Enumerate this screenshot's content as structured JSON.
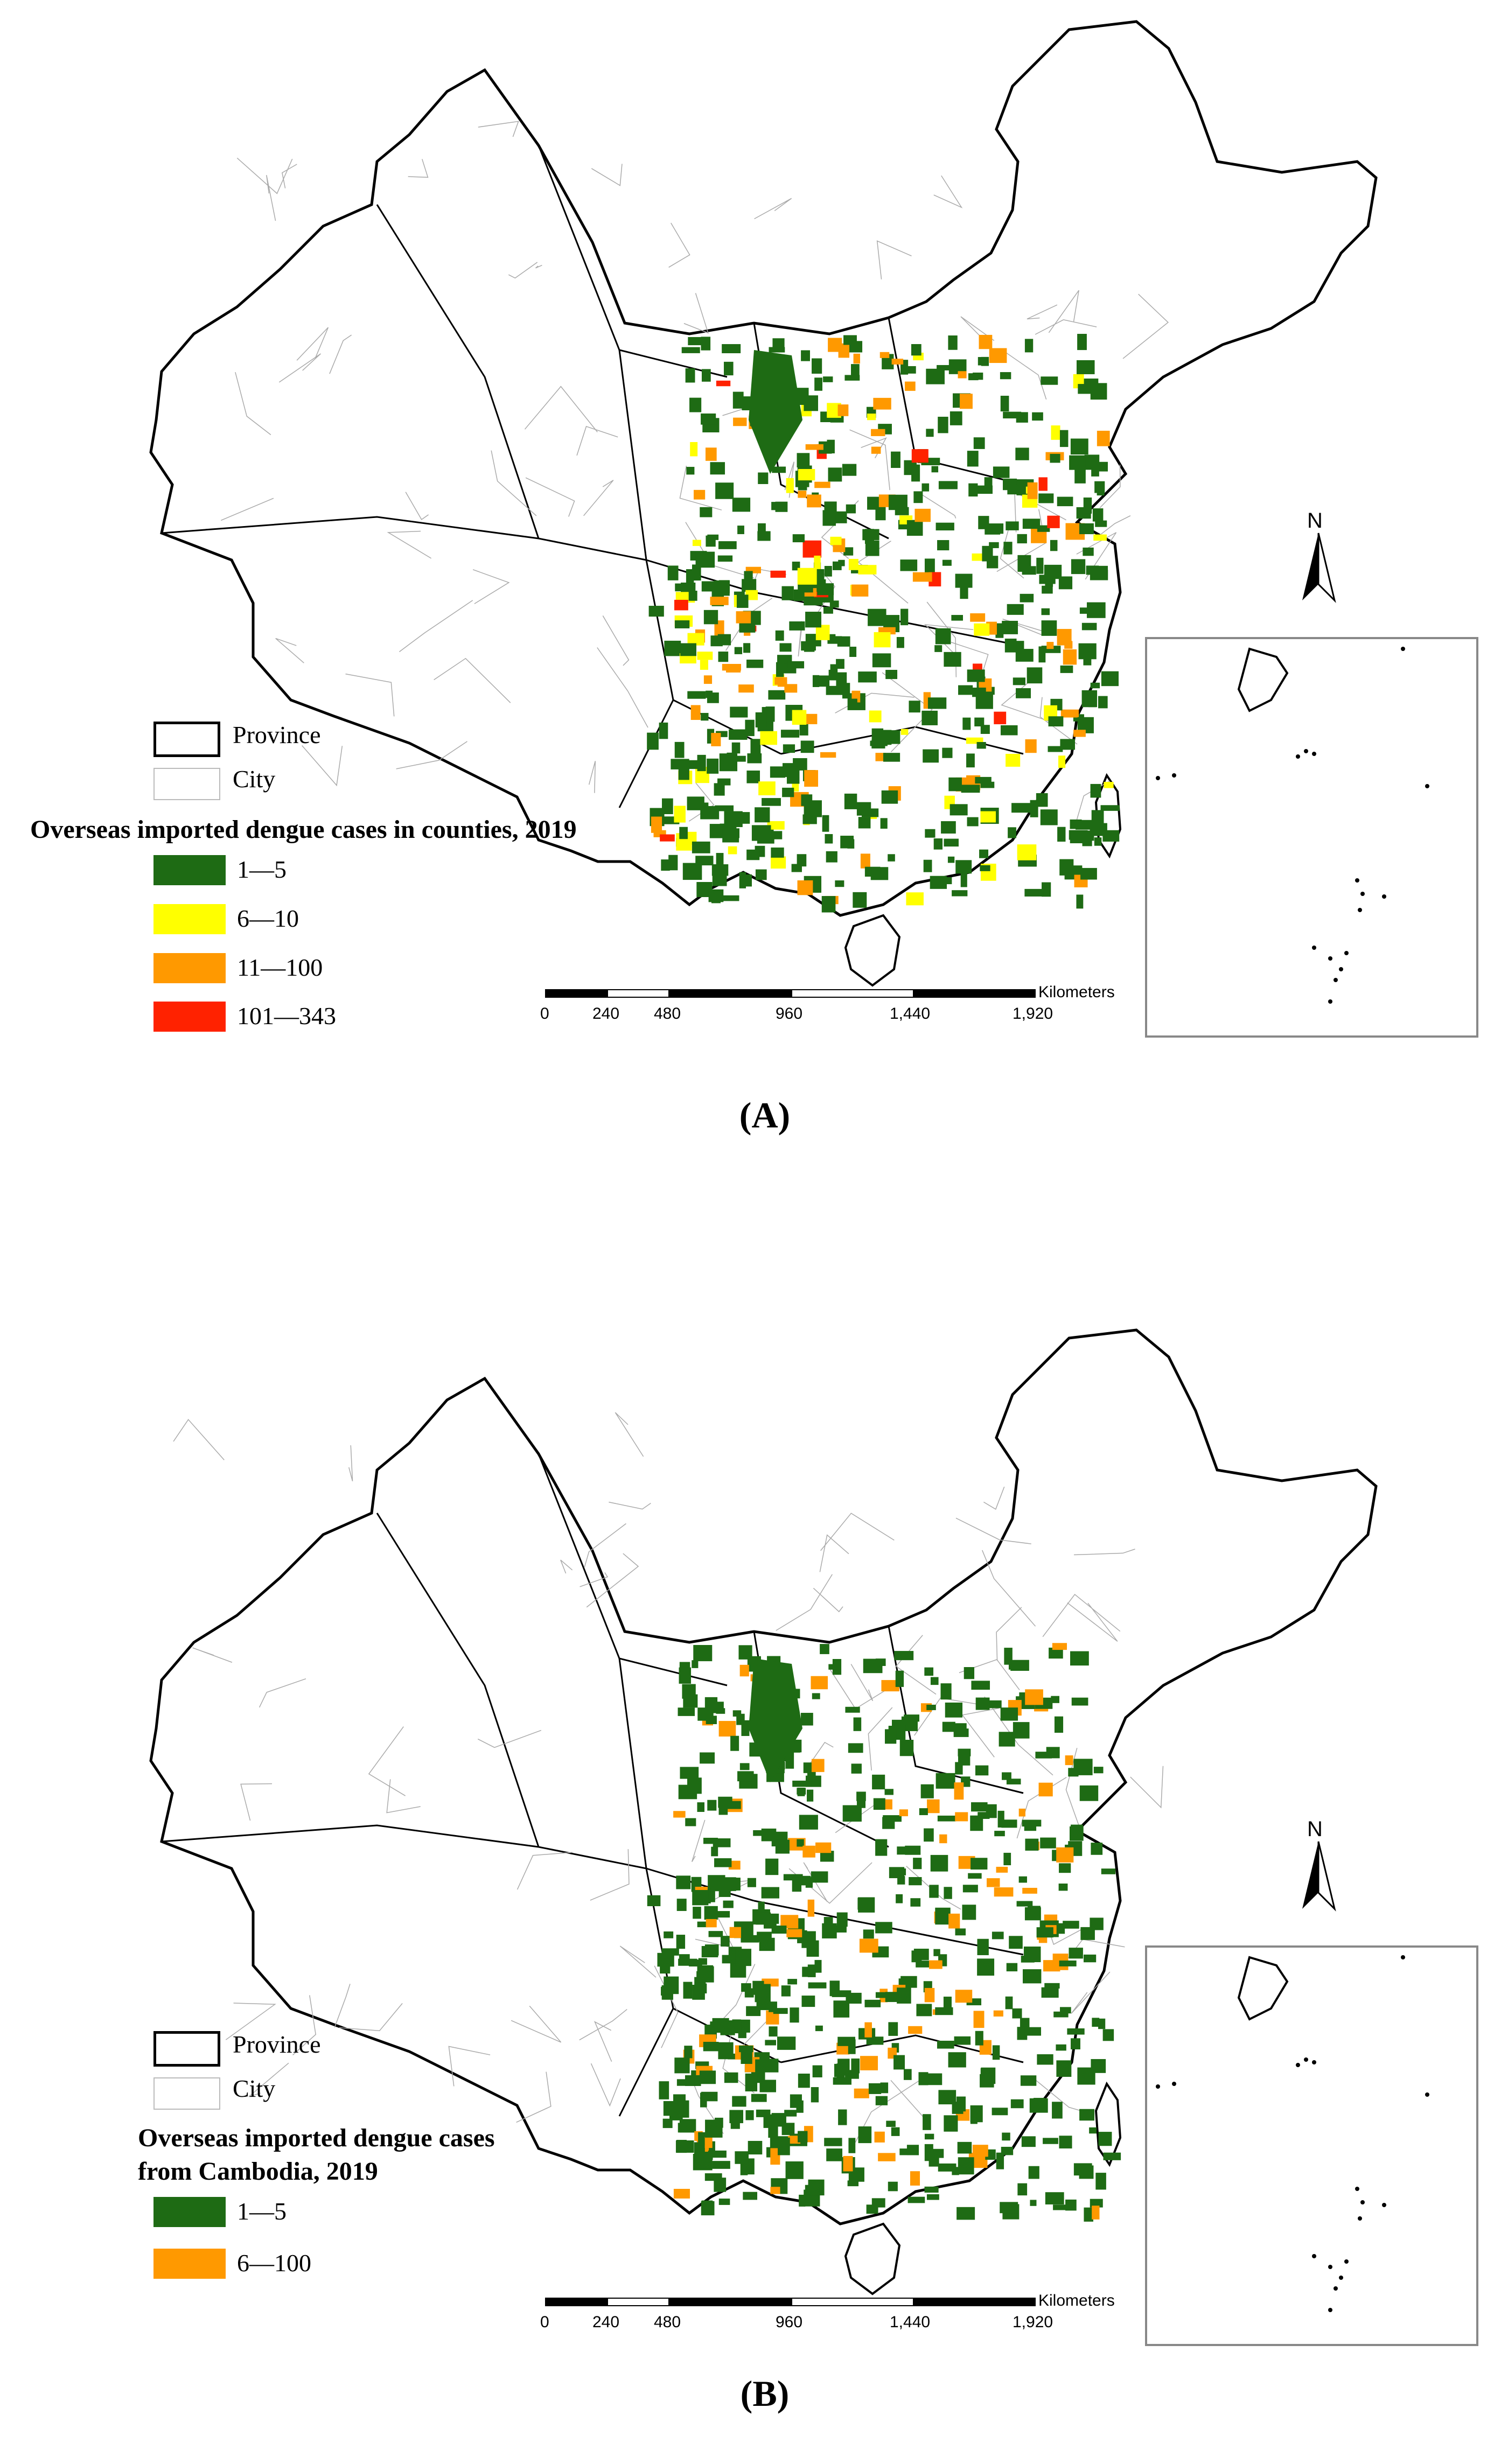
{
  "panels": [
    {
      "caption": "(A)",
      "legend": {
        "province_label": "Province",
        "city_label": "City",
        "title_lines": [
          "Overseas imported dengue cases in counties, 2019"
        ],
        "classes": [
          {
            "label": "1—5",
            "color": "#1e6b14"
          },
          {
            "label": "6—10",
            "color": "#ffff00"
          },
          {
            "label": "11—100",
            "color": "#ff9900"
          },
          {
            "label": "101—343",
            "color": "#ff2200"
          }
        ]
      },
      "scale_bar": {
        "unit": "Kilometers",
        "ticks": [
          "0",
          "240",
          "480",
          "960",
          "1,440",
          "1,920"
        ]
      },
      "north_arrow": "N"
    },
    {
      "caption": "(B)",
      "legend": {
        "province_label": "Province",
        "city_label": "City",
        "title_lines": [
          "Overseas imported dengue cases",
          "from Cambodia, 2019"
        ],
        "classes": [
          {
            "label": "1—5",
            "color": "#1e6b14"
          },
          {
            "label": "6—100",
            "color": "#ff9900"
          }
        ]
      },
      "scale_bar": {
        "unit": "Kilometers",
        "ticks": [
          "0",
          "240",
          "480",
          "960",
          "1,440",
          "1,920"
        ]
      },
      "north_arrow": "N"
    }
  ]
}
